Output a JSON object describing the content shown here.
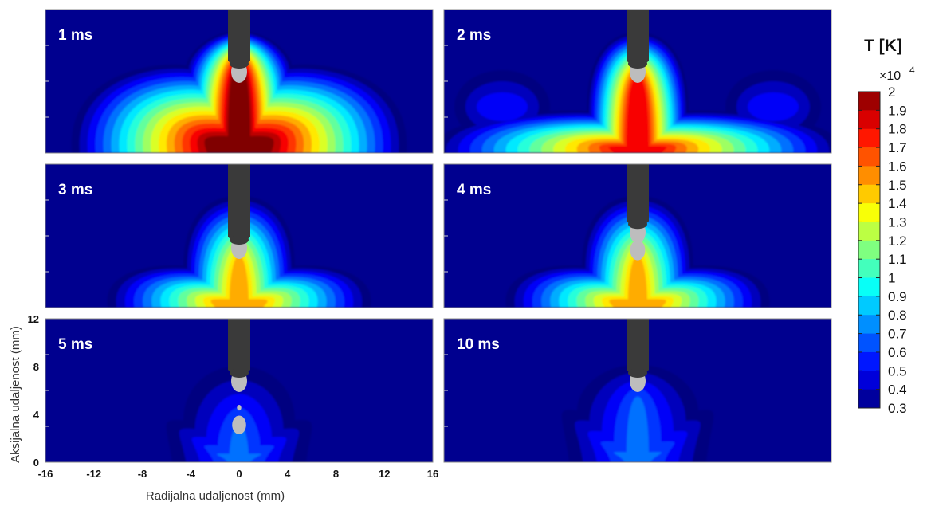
{
  "chart_data": {
    "type": "heatmap",
    "description_units": {
      "x": "mm",
      "y": "mm",
      "temperature": "K"
    },
    "xlabel": "Radijalna udaljenost (mm)",
    "ylabel": "Aksijalna udaljenost (mm)",
    "xlim": [
      -16,
      16
    ],
    "ylim": [
      0,
      12
    ],
    "x_ticks": [
      "-16",
      "-12",
      "-8",
      "-4",
      "0",
      "4",
      "8",
      "12",
      "16"
    ],
    "y_ticks": [
      "0",
      "4",
      "8",
      "12"
    ],
    "panels": [
      {
        "label": "1 ms",
        "peak_T": 2.0,
        "tip_y": 6.0
      },
      {
        "label": "2 ms",
        "peak_T": 1.8,
        "tip_y": 6.5
      },
      {
        "label": "3 ms",
        "peak_T": 1.55,
        "tip_y": 4.0
      },
      {
        "label": "4 ms",
        "peak_T": 1.55,
        "tip_y": 3.0
      },
      {
        "label": "5 ms",
        "peak_T": 0.75,
        "tip_y": 6.5
      },
      {
        "label": "10 ms",
        "peak_T": 0.7,
        "tip_y": 6.5
      }
    ],
    "colorbar": {
      "title": "T [K]",
      "multiplier_base": "×10",
      "multiplier_exp": "4",
      "min": 0.3,
      "max": 2.0,
      "ticks": [
        "2",
        "1.9",
        "1.8",
        "1.7",
        "1.6",
        "1.5",
        "1.4",
        "1.3",
        "1.2",
        "1.1",
        "1",
        "0.9",
        "0.8",
        "0.7",
        "0.6",
        "0.5",
        "0.4",
        "0.3"
      ],
      "colormap": "jet"
    },
    "background_color": "#00008f",
    "electrode_color": "#3a3a3a",
    "droplet_color": "#bdbdbd"
  }
}
